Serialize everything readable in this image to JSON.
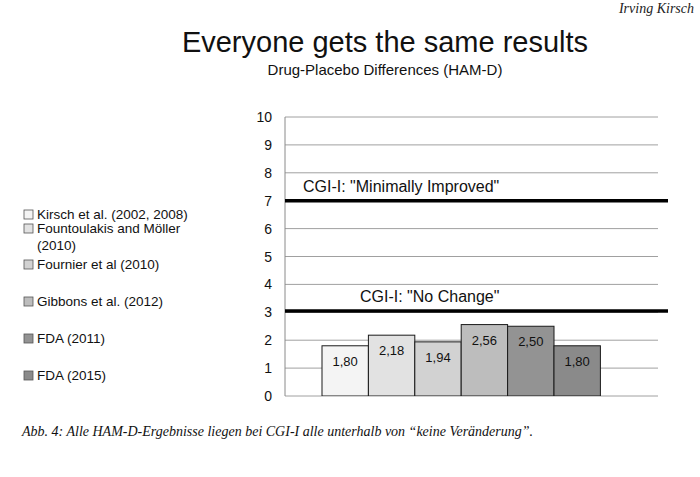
{
  "author": "Irving Kirsch",
  "caption": "Abb. 4: Alle HAM-D-Ergebnisse liegen bei CGI-I alle unterhalb von “keine Veränderung”.",
  "chart_data": {
    "type": "bar",
    "title": "Everyone gets the same results",
    "subtitle": "Drug-Placebo Differences (HAM-D)",
    "categories": [
      "Kirsch et al. (2002, 2008)",
      "Fountoulakis and Möller\n(2010)",
      "Fournier et al (2010)",
      "Gibbons et al. (2012)",
      "FDA (2011)",
      "FDA (2015)"
    ],
    "values": [
      1.8,
      2.18,
      1.94,
      2.56,
      2.5,
      1.8
    ],
    "value_labels": [
      "1,80",
      "2,18",
      "1,94",
      "2,56",
      "2,50",
      "1,80"
    ],
    "colors": [
      "#f4f4f4",
      "#e2e2e2",
      "#d2d2d2",
      "#bdbdbd",
      "#939393",
      "#8a8a8a"
    ],
    "data_labels": true,
    "ylim": [
      0,
      10
    ],
    "yticks": [
      0,
      1,
      2,
      3,
      4,
      5,
      6,
      7,
      8,
      9,
      10
    ],
    "grid": true,
    "legend": "left",
    "tick_labels": "y",
    "annotations": [
      {
        "text": "CGI-I: \"Minimally Improved\"",
        "y": 7
      },
      {
        "text": "CGI-I: \"No Change\"",
        "y": 3.05
      }
    ]
  }
}
